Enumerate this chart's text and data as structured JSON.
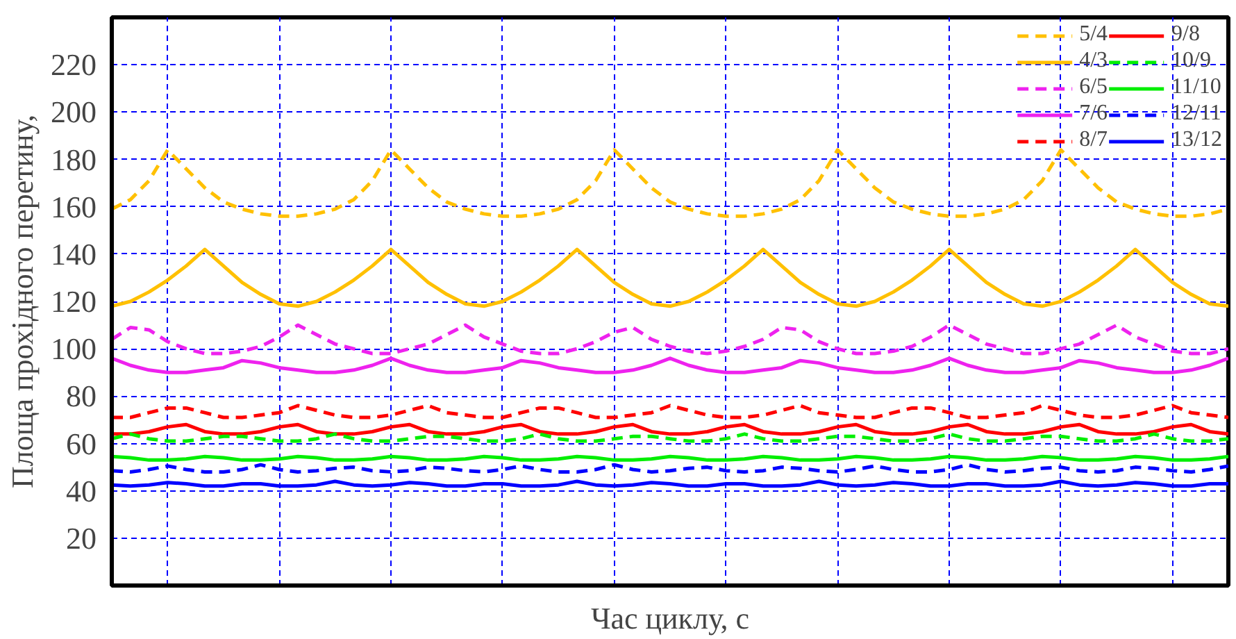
{
  "chart_data": {
    "type": "line",
    "xlabel": "Час циклу, с",
    "ylabel": "Площа прохідного перетину,",
    "categories": [
      null,
      null,
      null,
      null,
      null,
      null,
      null,
      null,
      null,
      null,
      null,
      null,
      null,
      null,
      null,
      null,
      null,
      null,
      null,
      null,
      null,
      null,
      null,
      null,
      null,
      null,
      null,
      null,
      null,
      null,
      null,
      null,
      null,
      null,
      null,
      null,
      null,
      null,
      null,
      null,
      null,
      null,
      null,
      null,
      null,
      null,
      null,
      null,
      null,
      null,
      null,
      null,
      null,
      null,
      null,
      null,
      null,
      null,
      null,
      null,
      null
    ],
    "ylim": [
      0,
      240
    ],
    "yticks": [
      20,
      40,
      60,
      80,
      100,
      120,
      140,
      160,
      180,
      200,
      220
    ],
    "tick_labels": "y",
    "grid": true,
    "legend": "top right",
    "marker": "none",
    "series": [
      {
        "name": "5/4",
        "color": "#ffc000",
        "line_style": "dashed",
        "values": [
          159,
          163,
          171,
          184,
          176,
          168,
          162,
          159,
          157,
          156,
          156,
          157,
          159,
          163,
          171,
          184,
          176,
          168,
          162,
          159,
          157,
          156,
          156,
          157,
          159,
          163,
          171,
          184,
          176,
          168,
          162,
          159,
          157,
          156,
          156,
          157,
          159,
          163,
          171,
          184,
          176,
          168,
          162,
          159,
          157,
          156,
          156,
          157,
          159,
          163,
          171,
          184,
          176,
          168,
          162,
          159,
          157,
          156,
          156,
          157,
          159
        ]
      },
      {
        "name": "4/3",
        "color": "#ffc000",
        "line_style": "solid",
        "values": [
          118,
          120,
          124,
          129,
          135,
          142,
          135,
          128,
          123,
          119,
          118,
          120,
          124,
          129,
          135,
          142,
          135,
          128,
          123,
          119,
          118,
          120,
          124,
          129,
          135,
          142,
          135,
          128,
          123,
          119,
          118,
          120,
          124,
          129,
          135,
          142,
          135,
          128,
          123,
          119,
          118,
          120,
          124,
          129,
          135,
          142,
          135,
          128,
          123,
          119,
          118,
          120,
          124,
          129,
          135,
          142,
          135,
          128,
          123,
          119,
          118
        ]
      },
      {
        "name": "6/5",
        "color": "#ee22ee",
        "line_style": "dashed",
        "values": [
          104,
          109,
          108,
          103,
          100,
          98,
          98,
          99,
          101,
          105,
          110,
          106,
          102,
          100,
          98,
          98,
          100,
          102,
          106,
          110,
          105,
          102,
          99,
          98,
          98,
          100,
          103,
          107,
          109,
          104,
          101,
          99,
          98,
          99,
          101,
          104,
          109,
          108,
          103,
          100,
          98,
          98,
          99,
          101,
          105,
          110,
          106,
          102,
          100,
          98,
          98,
          100,
          102,
          106,
          110,
          105,
          102,
          99,
          98,
          98,
          100
        ]
      },
      {
        "name": "7/6",
        "color": "#ee22ee",
        "line_style": "solid",
        "values": [
          96,
          93,
          91,
          90,
          90,
          91,
          92,
          95,
          94,
          92,
          91,
          90,
          90,
          91,
          93,
          96,
          93,
          91,
          90,
          90,
          91,
          92,
          95,
          94,
          92,
          91,
          90,
          90,
          91,
          93,
          96,
          93,
          91,
          90,
          90,
          91,
          92,
          95,
          94,
          92,
          91,
          90,
          90,
          91,
          93,
          96,
          93,
          91,
          90,
          90,
          91,
          92,
          95,
          94,
          92,
          91,
          90,
          90,
          91,
          93,
          96
        ]
      },
      {
        "name": "8/7",
        "color": "#ff0000",
        "line_style": "dashed",
        "values": [
          71,
          71,
          73,
          75,
          75,
          73,
          71,
          71,
          72,
          73,
          76,
          74,
          72,
          71,
          71,
          72,
          74,
          76,
          73,
          72,
          71,
          71,
          73,
          75,
          75,
          73,
          71,
          71,
          72,
          73,
          76,
          74,
          72,
          71,
          71,
          72,
          74,
          76,
          73,
          72,
          71,
          71,
          73,
          75,
          75,
          73,
          71,
          71,
          72,
          73,
          76,
          74,
          72,
          71,
          71,
          72,
          74,
          76,
          73,
          72,
          71
        ]
      },
      {
        "name": "9/8",
        "color": "#ff0000",
        "line_style": "solid",
        "values": [
          64,
          64,
          65,
          67,
          68,
          65,
          64,
          64,
          65,
          67,
          68,
          65,
          64,
          64,
          65,
          67,
          68,
          65,
          64,
          64,
          65,
          67,
          68,
          65,
          64,
          64,
          65,
          67,
          68,
          65,
          64,
          64,
          65,
          67,
          68,
          65,
          64,
          64,
          65,
          67,
          68,
          65,
          64,
          64,
          65,
          67,
          68,
          65,
          64,
          64,
          65,
          67,
          68,
          65,
          64,
          64,
          65,
          67,
          68,
          65,
          64
        ]
      },
      {
        "name": "10/9",
        "color": "#00ee00",
        "line_style": "dashed",
        "values": [
          62,
          64,
          62,
          61,
          61,
          62,
          63,
          63,
          62,
          61,
          61,
          62,
          64,
          62,
          61,
          61,
          62,
          63,
          63,
          62,
          61,
          61,
          62,
          64,
          62,
          61,
          61,
          62,
          63,
          63,
          62,
          61,
          61,
          62,
          64,
          62,
          61,
          61,
          62,
          63,
          63,
          62,
          61,
          61,
          62,
          64,
          62,
          61,
          61,
          62,
          63,
          63,
          62,
          61,
          61,
          62,
          64,
          62,
          61,
          61,
          62
        ]
      },
      {
        "name": "11/10",
        "color": "#00ee00",
        "line_style": "solid",
        "values": [
          54.5,
          54,
          53,
          53,
          53.5,
          54.5,
          54,
          53,
          53,
          53.5,
          54.5,
          54,
          53,
          53,
          53.5,
          54.5,
          54,
          53,
          53,
          53.5,
          54.5,
          54,
          53,
          53,
          53.5,
          54.5,
          54,
          53,
          53,
          53.5,
          54.5,
          54,
          53,
          53,
          53.5,
          54.5,
          54,
          53,
          53,
          53.5,
          54.5,
          54,
          53,
          53,
          53.5,
          54.5,
          54,
          53,
          53,
          53.5,
          54.5,
          54,
          53,
          53,
          53.5,
          54.5,
          54,
          53,
          53,
          53.5,
          54.5
        ]
      },
      {
        "name": "12/11",
        "color": "#0000ff",
        "line_style": "dashed",
        "values": [
          48.5,
          48,
          49,
          50.5,
          49,
          48,
          48,
          49,
          51,
          49,
          48,
          48.5,
          49.5,
          50,
          48.5,
          48,
          48.5,
          50,
          49.5,
          48.5,
          48,
          49,
          50.5,
          49,
          48,
          48,
          49,
          51,
          49,
          48,
          48.5,
          49.5,
          50,
          48.5,
          48,
          48.5,
          50,
          49.5,
          48.5,
          48,
          49,
          50.5,
          49,
          48,
          48,
          49,
          51,
          49,
          48,
          48.5,
          49.5,
          50,
          48.5,
          48,
          48.5,
          50,
          49.5,
          48.5,
          48,
          49,
          50.5
        ]
      },
      {
        "name": "13/12",
        "color": "#0000ff",
        "line_style": "solid",
        "values": [
          42.5,
          42,
          42.5,
          43.5,
          43,
          42,
          42,
          43,
          43,
          42,
          42,
          42.5,
          44,
          42.5,
          42,
          42.5,
          43.5,
          43,
          42,
          42,
          43,
          43,
          42,
          42,
          42.5,
          44,
          42.5,
          42,
          42.5,
          43.5,
          43,
          42,
          42,
          43,
          43,
          42,
          42,
          42.5,
          44,
          42.5,
          42,
          42.5,
          43.5,
          43,
          42,
          42,
          43,
          43,
          42,
          42,
          42.5,
          44,
          42.5,
          42,
          42.5,
          43.5,
          43,
          42,
          42,
          43,
          43
        ]
      }
    ]
  }
}
